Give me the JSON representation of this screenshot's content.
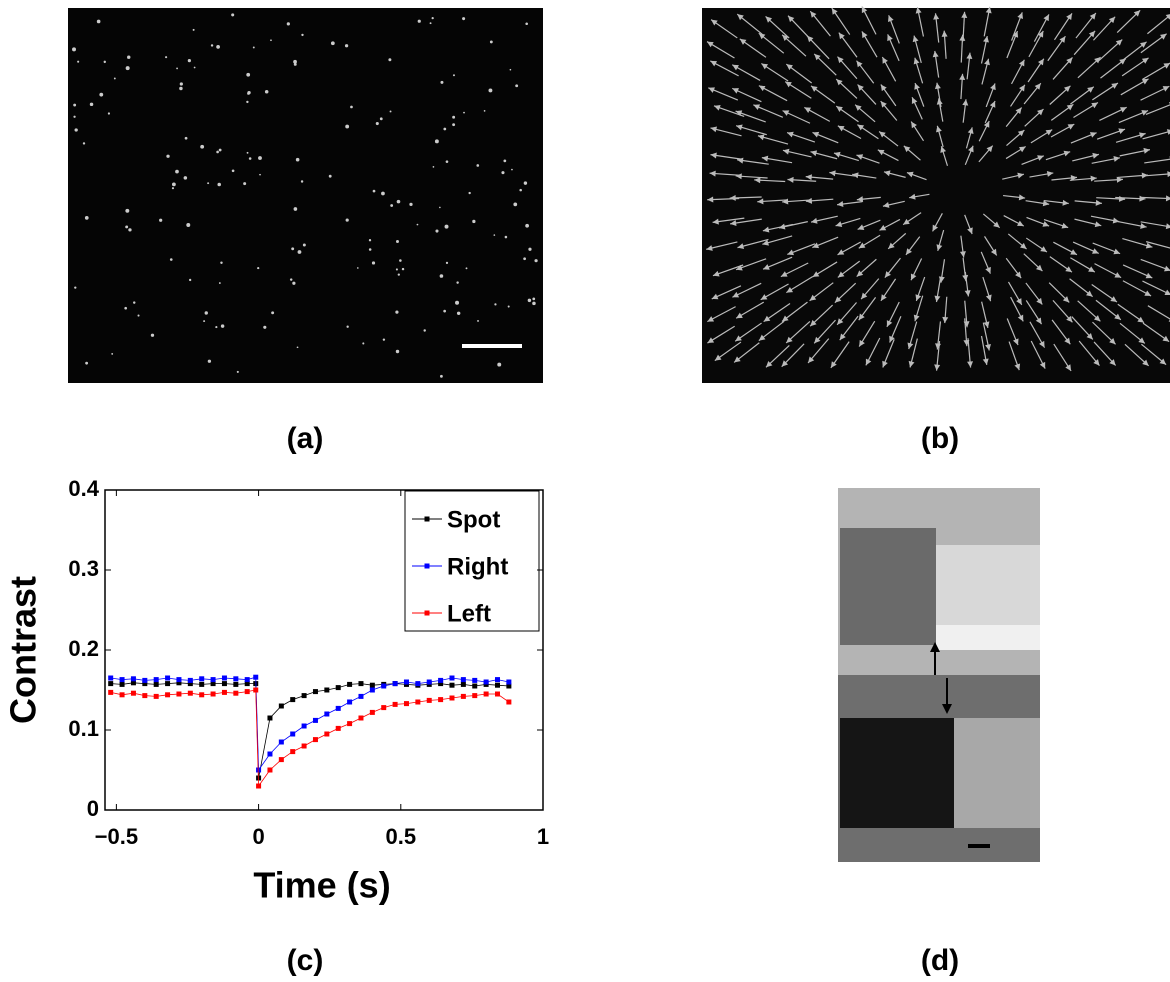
{
  "panel_labels": [
    "(a)",
    "(b)",
    "(c)",
    "(d)"
  ],
  "chart_data": {
    "type": "line",
    "xlabel": "Time (s)",
    "ylabel": "Contrast",
    "xlim": [
      -0.54,
      1
    ],
    "ylim": [
      0,
      0.4
    ],
    "xticks": [
      {
        "value": -0.5,
        "label": "−0.5"
      },
      0,
      0.5,
      1
    ],
    "yticks": [
      0,
      0.1,
      0.2,
      0.3,
      0.4
    ],
    "legend": "upper right",
    "x": [
      -0.52,
      -0.48,
      -0.44,
      -0.4,
      -0.36,
      -0.32,
      -0.28,
      -0.24,
      -0.2,
      -0.16,
      -0.12,
      -0.08,
      -0.04,
      -0.01,
      0,
      0.04,
      0.08,
      0.12,
      0.16,
      0.2,
      0.24,
      0.28,
      0.32,
      0.36,
      0.4,
      0.44,
      0.48,
      0.52,
      0.56,
      0.6,
      0.64,
      0.68,
      0.72,
      0.76,
      0.8,
      0.84,
      0.88
    ],
    "series": [
      {
        "name": "Spot",
        "color": "#000000",
        "values": [
          0.158,
          0.157,
          0.159,
          0.158,
          0.157,
          0.158,
          0.159,
          0.158,
          0.157,
          0.158,
          0.158,
          0.157,
          0.158,
          0.158,
          0.04,
          0.115,
          0.13,
          0.138,
          0.143,
          0.148,
          0.15,
          0.153,
          0.157,
          0.158,
          0.156,
          0.157,
          0.158,
          0.157,
          0.156,
          0.157,
          0.158,
          0.156,
          0.157,
          0.155,
          0.157,
          0.156,
          0.155
        ]
      },
      {
        "name": "Right",
        "color": "#0000ff",
        "values": [
          0.165,
          0.163,
          0.164,
          0.162,
          0.163,
          0.165,
          0.163,
          0.162,
          0.164,
          0.163,
          0.165,
          0.164,
          0.163,
          0.166,
          0.05,
          0.07,
          0.085,
          0.095,
          0.105,
          0.112,
          0.12,
          0.127,
          0.135,
          0.142,
          0.15,
          0.155,
          0.158,
          0.16,
          0.158,
          0.16,
          0.162,
          0.165,
          0.163,
          0.162,
          0.16,
          0.163,
          0.16
        ]
      },
      {
        "name": "Left",
        "color": "#ff0000",
        "values": [
          0.147,
          0.144,
          0.146,
          0.143,
          0.142,
          0.144,
          0.145,
          0.146,
          0.144,
          0.145,
          0.147,
          0.146,
          0.148,
          0.15,
          0.03,
          0.05,
          0.063,
          0.073,
          0.08,
          0.088,
          0.095,
          0.102,
          0.108,
          0.115,
          0.122,
          0.128,
          0.132,
          0.133,
          0.135,
          0.137,
          0.138,
          0.14,
          0.142,
          0.143,
          0.145,
          0.145,
          0.135
        ]
      }
    ]
  }
}
